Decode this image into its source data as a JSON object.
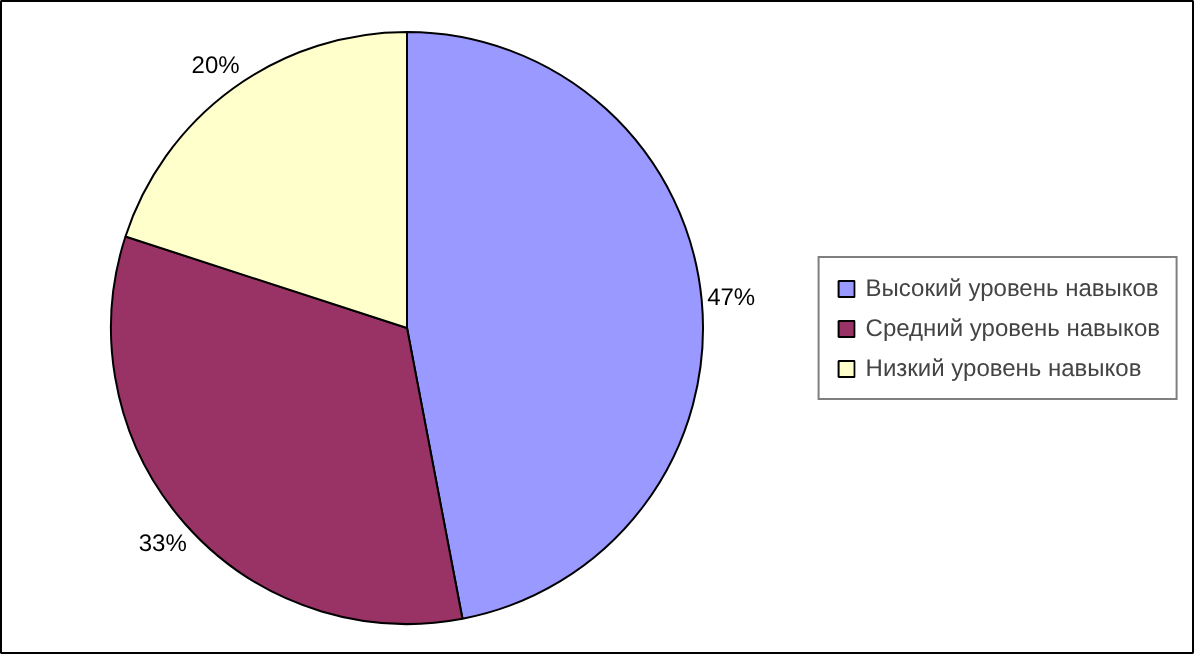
{
  "chart_data": {
    "type": "pie",
    "categories": [
      "Высокий уровень навыков",
      "Средний уровень навыков",
      "Низкий уровень навыков"
    ],
    "values": [
      47,
      33,
      20
    ],
    "colors": [
      "#9999ff",
      "#993366",
      "#ffffcc"
    ],
    "value_labels": [
      "47%",
      "33%",
      "20%"
    ],
    "legend": "right"
  }
}
